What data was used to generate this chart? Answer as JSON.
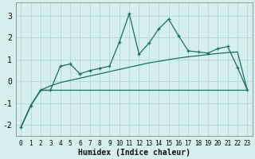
{
  "xlabel": "Humidex (Indice chaleur)",
  "bg_color": "#d4efed",
  "grid_color": "#aed8d5",
  "line_color": "#1a6e64",
  "xlim": [
    -0.5,
    23.5
  ],
  "ylim": [
    -2.5,
    3.6
  ],
  "xticks": [
    0,
    1,
    2,
    3,
    4,
    5,
    6,
    7,
    8,
    9,
    10,
    11,
    12,
    13,
    14,
    15,
    16,
    17,
    18,
    19,
    20,
    21,
    22,
    23
  ],
  "yticks": [
    -2,
    -1,
    0,
    1,
    2,
    3
  ],
  "line1_x": [
    0,
    1,
    2,
    3,
    4,
    5,
    6,
    7,
    8,
    9,
    10,
    11,
    12,
    13,
    14,
    15,
    16,
    17,
    18,
    19,
    20,
    21,
    22,
    23
  ],
  "line1_y": [
    -2.1,
    -1.1,
    -0.4,
    -0.4,
    0.7,
    0.8,
    0.35,
    0.5,
    0.6,
    0.7,
    1.8,
    3.1,
    1.25,
    1.75,
    2.4,
    2.85,
    2.1,
    1.4,
    1.35,
    1.3,
    1.5,
    1.6,
    0.65,
    -0.4
  ],
  "line2_x": [
    0,
    1,
    2,
    3,
    4,
    5,
    6,
    7,
    8,
    9,
    10,
    11,
    12,
    13,
    14,
    15,
    16,
    17,
    18,
    19,
    20,
    21,
    22,
    23
  ],
  "line2_y": [
    -2.1,
    -1.1,
    -0.4,
    -0.4,
    -0.4,
    -0.4,
    -0.4,
    -0.4,
    -0.4,
    -0.4,
    -0.4,
    -0.4,
    -0.4,
    -0.4,
    -0.4,
    -0.4,
    -0.4,
    -0.4,
    -0.4,
    -0.4,
    -0.4,
    -0.4,
    -0.4,
    -0.4
  ],
  "line3_x": [
    0,
    1,
    2,
    3,
    4,
    5,
    6,
    7,
    8,
    9,
    10,
    11,
    12,
    13,
    14,
    15,
    16,
    17,
    18,
    19,
    20,
    21,
    22,
    23
  ],
  "line3_y": [
    -2.1,
    -1.1,
    -0.4,
    -0.2,
    -0.05,
    0.05,
    0.15,
    0.25,
    0.35,
    0.45,
    0.55,
    0.65,
    0.75,
    0.85,
    0.92,
    1.0,
    1.07,
    1.13,
    1.18,
    1.23,
    1.28,
    1.32,
    1.35,
    -0.4
  ]
}
